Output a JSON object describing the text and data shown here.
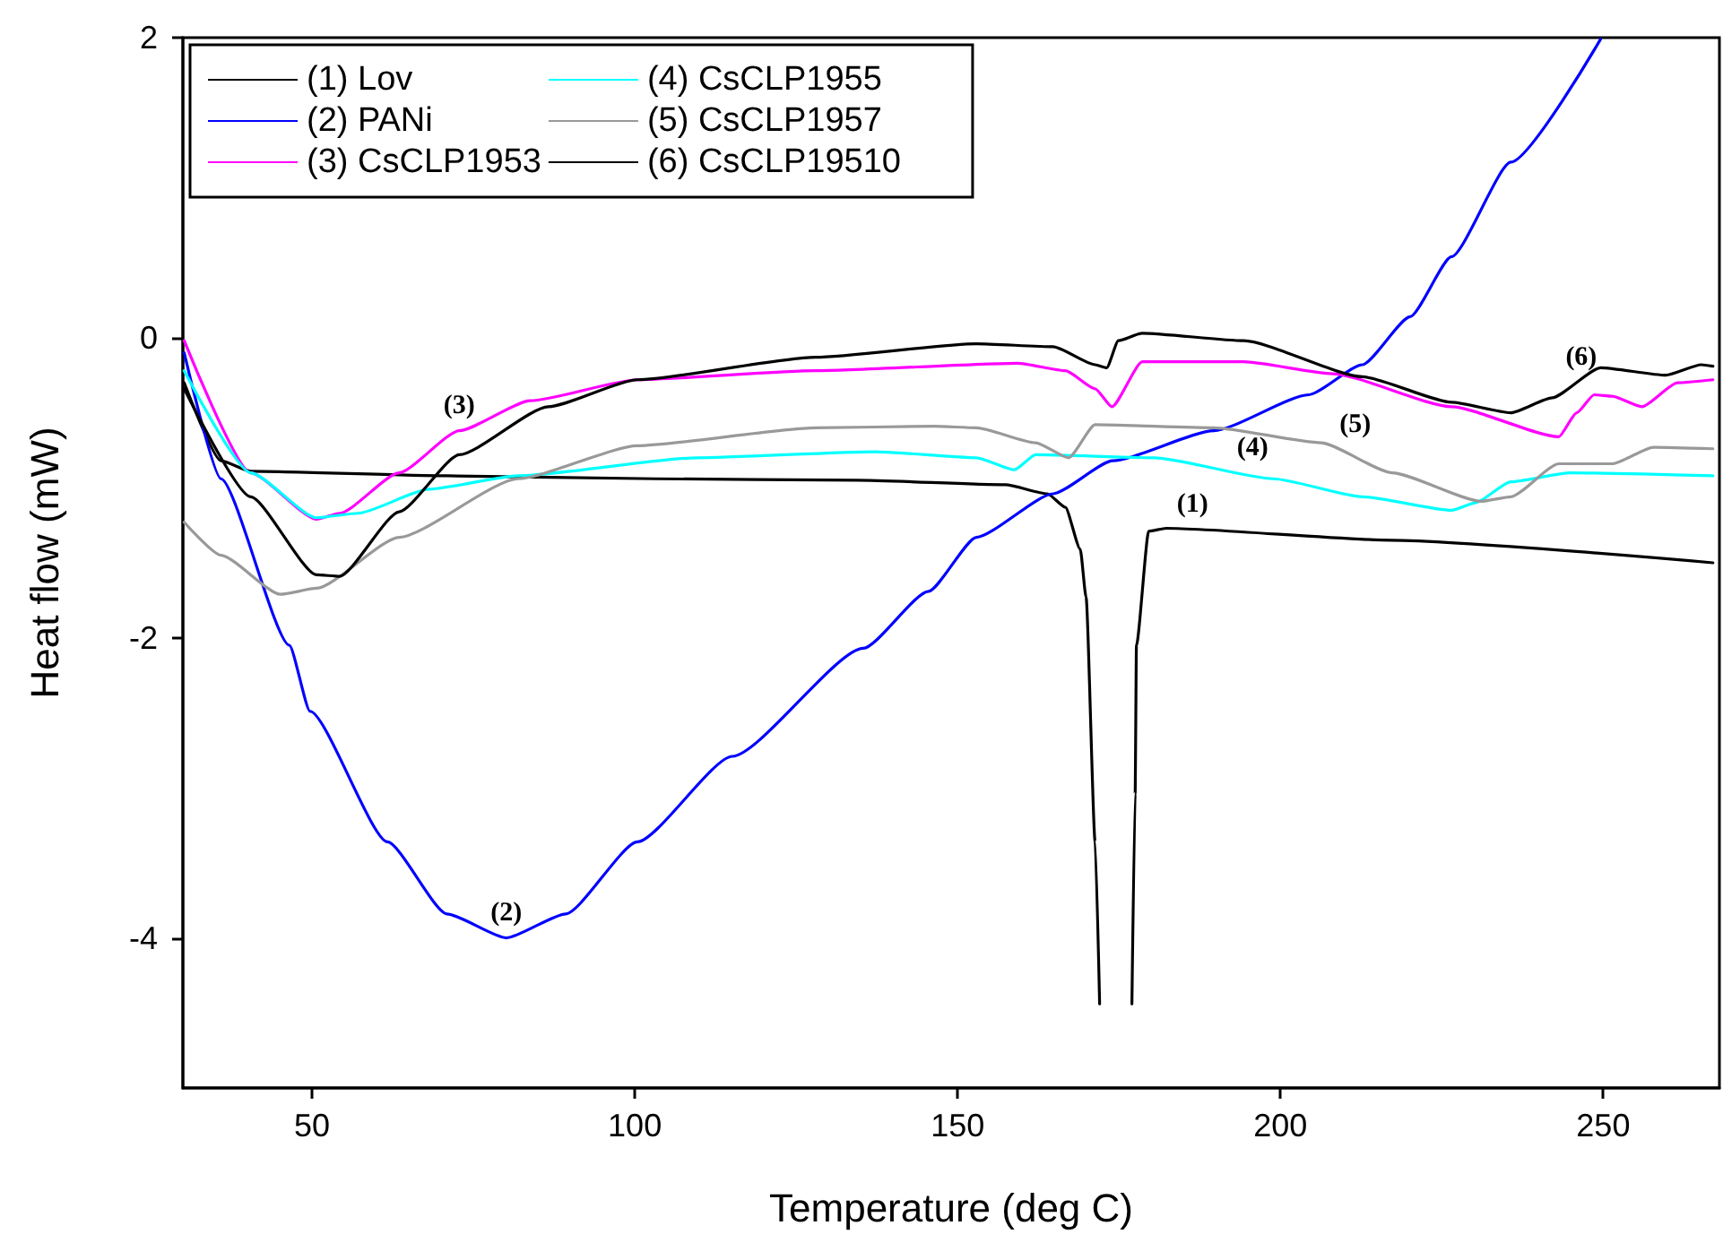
{
  "chart_data": {
    "type": "line",
    "xlabel": "Temperature (deg C)",
    "ylabel": "Heat flow (mW)",
    "xlim": [
      30,
      268
    ],
    "xticks": [
      50,
      100,
      150,
      200,
      250
    ],
    "ylim": [
      -5,
      2
    ],
    "yticks": [
      -4,
      -2,
      0,
      2
    ],
    "grid": false,
    "legend": "top left",
    "marker": "none",
    "line_style": "solid",
    "series": [
      {
        "name": "(1) Lov",
        "color": "#000000",
        "x": [
          30.2,
          35.9,
          40.5,
          70.9,
          103.2,
          134.4,
          157.4,
          163.9,
          166.7,
          169,
          169.9,
          171.3,
          172.0,
          174.6,
          177.0,
          177.5,
          177.7,
          179.6,
          182.3,
          217.3,
          267
        ],
        "values": [
          -0.3,
          -0.82,
          -0.89,
          -0.92,
          -0.94,
          -0.95,
          -0.98,
          -1.04,
          -1.13,
          -1.41,
          -1.73,
          -3.36,
          -4.44,
          null,
          -4.44,
          -3.04,
          -2.05,
          -1.29,
          -1.27,
          -1.35,
          -1.5
        ]
      },
      {
        "name": "(2) PANi",
        "color": "#0000ff",
        "x": [
          30.2,
          35.9,
          46.5,
          49.7,
          61.7,
          70.9,
          80.1,
          89.3,
          100.4,
          115.1,
          135.4,
          145.5,
          152.9,
          164.8,
          174,
          189.7,
          204.4,
          212.7,
          220.1,
          226.5,
          235.7,
          249.6
        ],
        "values": [
          -0.1,
          -0.94,
          -2.05,
          -2.49,
          -3.36,
          -3.84,
          -4.0,
          -3.84,
          -3.36,
          -2.79,
          -2.07,
          -1.69,
          -1.33,
          -1.04,
          -0.82,
          -0.62,
          -0.38,
          -0.18,
          0.14,
          0.54,
          1.17,
          1.99
        ]
      },
      {
        "name": "(3) CsCLP1953",
        "color": "#ff00ff",
        "x": [
          30.2,
          40.5,
          50.7,
          54.3,
          63.5,
          72.8,
          83.8,
          100.4,
          128,
          159.3,
          166.7,
          171.3,
          173.9,
          178.6,
          194.3,
          208.1,
          226.5,
          243.1,
          245.9,
          248.6,
          251.4,
          256,
          261.5,
          267
        ],
        "values": [
          -0.02,
          -0.9,
          -1.21,
          -1.17,
          -0.9,
          -0.62,
          -0.42,
          -0.28,
          -0.22,
          -0.17,
          -0.22,
          -0.34,
          -0.46,
          -0.16,
          -0.16,
          -0.24,
          -0.46,
          -0.66,
          -0.5,
          -0.38,
          -0.39,
          -0.46,
          -0.3,
          -0.28
        ]
      },
      {
        "name": "(4) CsCLP1955",
        "color": "#00ffff",
        "x": [
          30.2,
          40.5,
          50.7,
          57.1,
          68.1,
          81.9,
          109.6,
          137.2,
          152.9,
          158.8,
          162.1,
          180.5,
          198.9,
          212.7,
          226.5,
          230.2,
          235.7,
          244.9,
          267
        ],
        "values": [
          -0.22,
          -0.9,
          -1.2,
          -1.17,
          -1.01,
          -0.92,
          -0.8,
          -0.76,
          -0.8,
          -0.88,
          -0.78,
          -0.8,
          -0.94,
          -1.06,
          -1.15,
          -1.1,
          -0.96,
          -0.9,
          -0.92
        ]
      },
      {
        "name": "(5) CsCLP1957",
        "color": "#999999",
        "x": [
          30.2,
          35.9,
          45.1,
          50.7,
          63.5,
          81.9,
          100.4,
          128,
          146.4,
          152.9,
          162.1,
          167.2,
          171.3,
          189.7,
          206.3,
          217.3,
          231.1,
          235.7,
          243.1,
          251.4,
          257.8,
          267
        ],
        "values": [
          -1.23,
          -1.45,
          -1.71,
          -1.67,
          -1.33,
          -0.94,
          -0.72,
          -0.6,
          -0.59,
          -0.6,
          -0.7,
          -0.8,
          -0.58,
          -0.6,
          -0.7,
          -0.9,
          -1.09,
          -1.06,
          -0.84,
          -0.84,
          -0.73,
          -0.74
        ]
      },
      {
        "name": "(6) CsCLP19510",
        "color": "#000000",
        "x": [
          30.2,
          40.5,
          50.7,
          54.3,
          63.5,
          72.8,
          86.6,
          100.4,
          128,
          152.9,
          164.8,
          171.3,
          173.1,
          174.9,
          178.6,
          194.3,
          212.7,
          226.5,
          235.7,
          242.1,
          249.6,
          259.7,
          265.2,
          267
        ],
        "values": [
          -0.34,
          -1.06,
          -1.58,
          -1.59,
          -1.16,
          -0.78,
          -0.46,
          -0.28,
          -0.13,
          -0.04,
          -0.06,
          -0.18,
          -0.2,
          -0.02,
          0.03,
          -0.02,
          -0.26,
          -0.43,
          -0.5,
          -0.4,
          -0.2,
          -0.25,
          -0.18,
          -0.19
        ]
      }
    ],
    "annotations": [
      {
        "text": "(1)",
        "x": 186.4,
        "y": -1.28
      },
      {
        "text": "(2)",
        "x": 80.1,
        "y": -4.0
      },
      {
        "text": "(3)",
        "x": 72.8,
        "y": -0.62
      },
      {
        "text": "(4)",
        "x": 195.7,
        "y": -0.9
      },
      {
        "text": "(5)",
        "x": 211.6,
        "y": -0.75
      },
      {
        "text": "(6)",
        "x": 246.6,
        "y": -0.3
      }
    ]
  }
}
